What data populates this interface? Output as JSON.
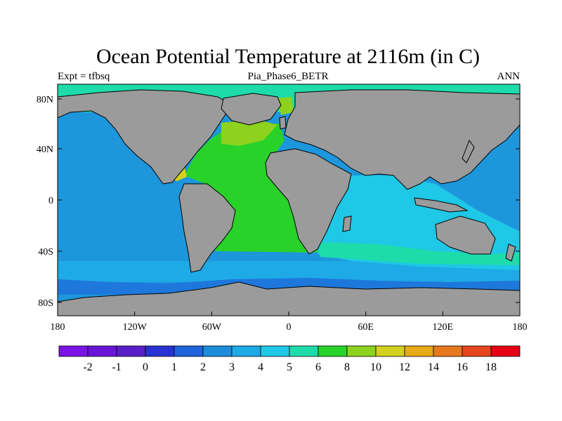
{
  "title": "Ocean Potential Temperature at 2116m (in C)",
  "left_string": "Expt = tfbsq",
  "center_string": "Pia_Phase6_BETR",
  "right_string": "ANN",
  "lat_ticks": [
    "80N",
    "40N",
    "0",
    "40S",
    "80S"
  ],
  "lon_ticks": [
    "180",
    "120W",
    "60W",
    "0",
    "60E",
    "120E",
    "180"
  ],
  "colorbar": {
    "labels": [
      "-2",
      "-1",
      "0",
      "1",
      "2",
      "3",
      "4",
      "5",
      "6",
      "8",
      "10",
      "12",
      "14",
      "16",
      "18"
    ],
    "colors": [
      "#7a14e6",
      "#6a14d8",
      "#5a1ec8",
      "#2832d2",
      "#1e64dc",
      "#1e8cdc",
      "#1eaae6",
      "#1ec8e6",
      "#1edcaa",
      "#28d228",
      "#8cd21e",
      "#d2d21e",
      "#e6aa14",
      "#e6781e",
      "#e6461e",
      "#e60014"
    ]
  },
  "colors": {
    "land": "#9b9b9b",
    "pacific_deep": "#1e96dc",
    "indian": "#1ec8e6",
    "southern": "#1eaae6",
    "antarctic_cold": "#1e78dc",
    "arctic": "#1edcaa",
    "atlantic": "#28d228",
    "north_atlantic": "#8cd21e",
    "warm_patch": "#d2d21e",
    "coast": "#000000"
  }
}
